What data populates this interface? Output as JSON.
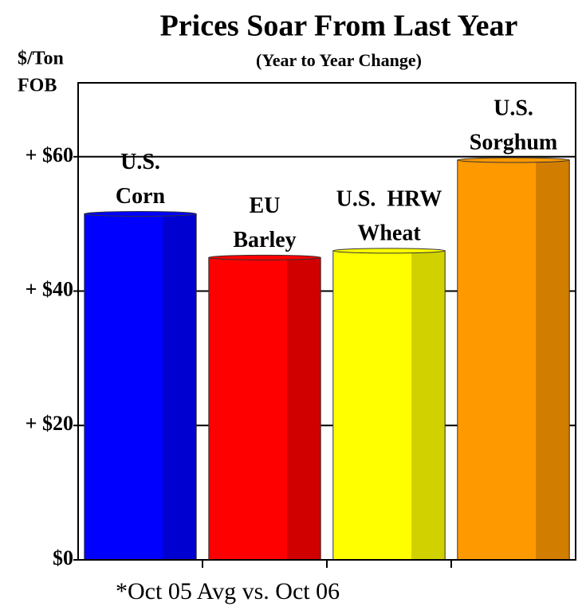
{
  "chart_data": {
    "type": "bar",
    "title": "Prices Soar From Last Year",
    "subtitle": "(Year to Year Change)",
    "y_label": [
      "$/Ton",
      "FOB"
    ],
    "footnote": "*Oct 05 Avg vs. Oct 06",
    "categories": [
      [
        "U.S.",
        "Corn"
      ],
      [
        "EU",
        "Barley"
      ],
      [
        "U.S.  HRW",
        "Wheat"
      ],
      [
        "U.S.",
        "Sorghum"
      ]
    ],
    "values": [
      51.5,
      45,
      46,
      59.5
    ],
    "colors": [
      "#0000ff",
      "#ff0000",
      "#ffff00",
      "#ff9900"
    ],
    "ylim": [
      0,
      71
    ],
    "yticks": [
      {
        "value": 0,
        "label": "$0"
      },
      {
        "value": 20,
        "label": "+ $20"
      },
      {
        "value": 40,
        "label": "+ $40"
      },
      {
        "value": 60,
        "label": "+ $60"
      }
    ],
    "grid": true
  }
}
